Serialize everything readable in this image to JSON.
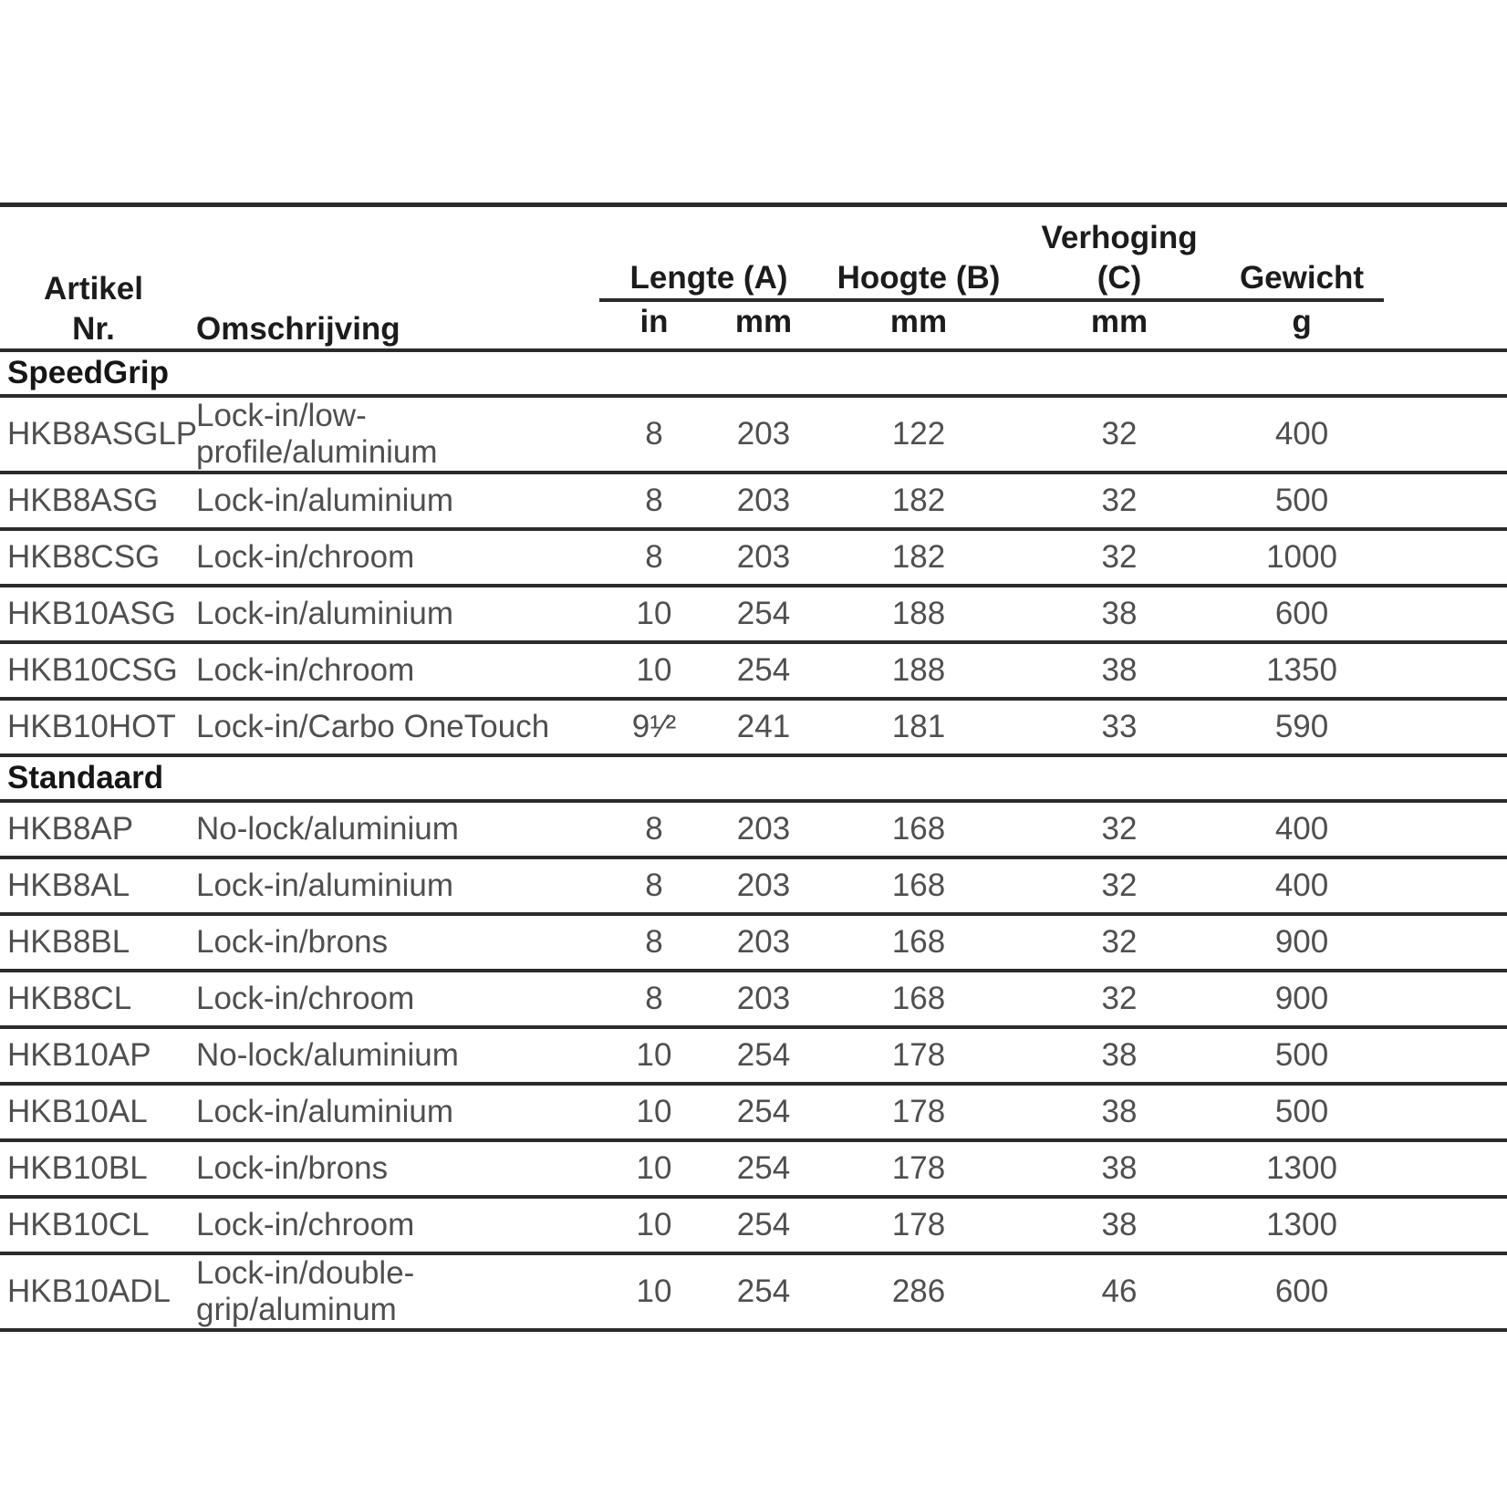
{
  "table": {
    "headers": {
      "artikel_line1": "Artikel",
      "artikel_line2": "Nr.",
      "omschrijving": "Omschrijving",
      "lengte": "Lengte (A)",
      "lengte_unit_in": "in",
      "lengte_unit_mm": "mm",
      "hoogte": "Hoogte (B)",
      "hoogte_unit": "mm",
      "verhoging": "Verhoging (C)",
      "verhoging_unit": "mm",
      "gewicht": "Gewicht",
      "gewicht_unit": "g"
    },
    "sections": [
      {
        "title": "SpeedGrip",
        "rows": [
          {
            "artikel": "HKB8ASGLP",
            "omschrijving": "Lock-in/low-profile/aluminium",
            "lengte_in": "8",
            "lengte_mm": "203",
            "hoogte_mm": "122",
            "verhoging_mm": "32",
            "gewicht_g": "400"
          },
          {
            "artikel": "HKB8ASG",
            "omschrijving": "Lock-in/aluminium",
            "lengte_in": "8",
            "lengte_mm": "203",
            "hoogte_mm": "182",
            "verhoging_mm": "32",
            "gewicht_g": "500"
          },
          {
            "artikel": "HKB8CSG",
            "omschrijving": "Lock-in/chroom",
            "lengte_in": "8",
            "lengte_mm": "203",
            "hoogte_mm": "182",
            "verhoging_mm": "32",
            "gewicht_g": "1000"
          },
          {
            "artikel": "HKB10ASG",
            "omschrijving": "Lock-in/aluminium",
            "lengte_in": "10",
            "lengte_mm": "254",
            "hoogte_mm": "188",
            "verhoging_mm": "38",
            "gewicht_g": "600"
          },
          {
            "artikel": "HKB10CSG",
            "omschrijving": "Lock-in/chroom",
            "lengte_in": "10",
            "lengte_mm": "254",
            "hoogte_mm": "188",
            "verhoging_mm": "38",
            "gewicht_g": "1350"
          },
          {
            "artikel": "HKB10HOT",
            "omschrijving": "Lock-in/Carbo OneTouch",
            "lengte_in": "9¹⁄²",
            "lengte_mm": "241",
            "hoogte_mm": "181",
            "verhoging_mm": "33",
            "gewicht_g": "590"
          }
        ]
      },
      {
        "title": "Standaard",
        "rows": [
          {
            "artikel": "HKB8AP",
            "omschrijving": "No-lock/aluminium",
            "lengte_in": "8",
            "lengte_mm": "203",
            "hoogte_mm": "168",
            "verhoging_mm": "32",
            "gewicht_g": "400"
          },
          {
            "artikel": "HKB8AL",
            "omschrijving": "Lock-in/aluminium",
            "lengte_in": "8",
            "lengte_mm": "203",
            "hoogte_mm": "168",
            "verhoging_mm": "32",
            "gewicht_g": "400"
          },
          {
            "artikel": "HKB8BL",
            "omschrijving": "Lock-in/brons",
            "lengte_in": "8",
            "lengte_mm": "203",
            "hoogte_mm": "168",
            "verhoging_mm": "32",
            "gewicht_g": "900"
          },
          {
            "artikel": "HKB8CL",
            "omschrijving": "Lock-in/chroom",
            "lengte_in": "8",
            "lengte_mm": "203",
            "hoogte_mm": "168",
            "verhoging_mm": "32",
            "gewicht_g": "900"
          },
          {
            "artikel": "HKB10AP",
            "omschrijving": "No-lock/aluminium",
            "lengte_in": "10",
            "lengte_mm": "254",
            "hoogte_mm": "178",
            "verhoging_mm": "38",
            "gewicht_g": "500"
          },
          {
            "artikel": "HKB10AL",
            "omschrijving": "Lock-in/aluminium",
            "lengte_in": "10",
            "lengte_mm": "254",
            "hoogte_mm": "178",
            "verhoging_mm": "38",
            "gewicht_g": "500"
          },
          {
            "artikel": "HKB10BL",
            "omschrijving": "Lock-in/brons",
            "lengte_in": "10",
            "lengte_mm": "254",
            "hoogte_mm": "178",
            "verhoging_mm": "38",
            "gewicht_g": "1300"
          },
          {
            "artikel": "HKB10CL",
            "omschrijving": "Lock-in/chroom",
            "lengte_in": "10",
            "lengte_mm": "254",
            "hoogte_mm": "178",
            "verhoging_mm": "38",
            "gewicht_g": "1300"
          },
          {
            "artikel": "HKB10ADL",
            "omschrijving": "Lock-in/double-grip/aluminum",
            "lengte_in": "10",
            "lengte_mm": "254",
            "hoogte_mm": "286",
            "verhoging_mm": "46",
            "gewicht_g": "600"
          }
        ]
      }
    ]
  }
}
